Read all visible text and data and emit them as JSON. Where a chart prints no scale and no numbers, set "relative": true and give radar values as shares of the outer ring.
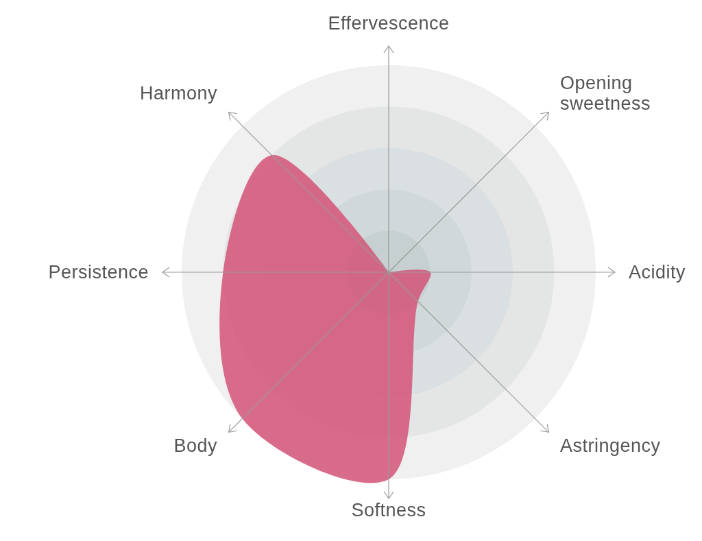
{
  "chart_data": {
    "type": "radar",
    "relative": true,
    "categories": [
      "Effervescence",
      "Opening\nsweetness",
      "Acidity",
      "Astringency",
      "Softness",
      "Body",
      "Persistence",
      "Harmony"
    ],
    "series": [
      {
        "color": "#d4587a",
        "values": [
          0,
          0,
          0.2,
          0.2,
          1,
          1,
          0.8,
          0.8
        ]
      }
    ]
  }
}
